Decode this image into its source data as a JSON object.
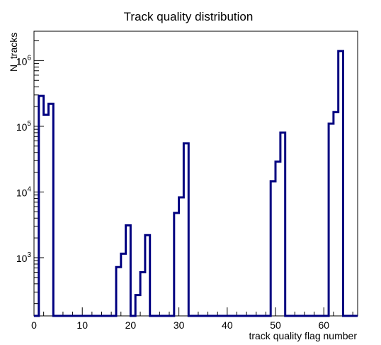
{
  "chart_data": {
    "type": "histogram",
    "title": "Track quality distribution",
    "xlabel": "track quality flag number",
    "ylabel": "N_tracks",
    "log_y": true,
    "xlim": [
      0,
      67
    ],
    "ylim": [
      130,
      2800000
    ],
    "x_ticks": [
      {
        "value": 0,
        "label": "0"
      },
      {
        "value": 10,
        "label": "10"
      },
      {
        "value": 20,
        "label": "20"
      },
      {
        "value": 30,
        "label": "30"
      },
      {
        "value": 40,
        "label": "40"
      },
      {
        "value": 50,
        "label": "50"
      },
      {
        "value": 60,
        "label": "60"
      }
    ],
    "y_ticks": [
      {
        "value": 1000,
        "base": "10",
        "exp": "3"
      },
      {
        "value": 10000,
        "base": "10",
        "exp": "4"
      },
      {
        "value": 100000,
        "base": "10",
        "exp": "5"
      },
      {
        "value": 1000000,
        "base": "10",
        "exp": "6"
      }
    ],
    "bin_width": 1,
    "bins": [
      {
        "x": 0,
        "y": 0
      },
      {
        "x": 1,
        "y": 290000
      },
      {
        "x": 2,
        "y": 150000
      },
      {
        "x": 3,
        "y": 220000
      },
      {
        "x": 17,
        "y": 720
      },
      {
        "x": 18,
        "y": 1150
      },
      {
        "x": 19,
        "y": 3100
      },
      {
        "x": 21,
        "y": 270
      },
      {
        "x": 22,
        "y": 600
      },
      {
        "x": 23,
        "y": 2200
      },
      {
        "x": 29,
        "y": 4800
      },
      {
        "x": 30,
        "y": 8300
      },
      {
        "x": 31,
        "y": 55000
      },
      {
        "x": 49,
        "y": 14500
      },
      {
        "x": 50,
        "y": 29000
      },
      {
        "x": 51,
        "y": 80000
      },
      {
        "x": 61,
        "y": 110000
      },
      {
        "x": 62,
        "y": 165000
      },
      {
        "x": 63,
        "y": 1400000
      }
    ],
    "line_color": "#000080",
    "grid": false,
    "legend": "none"
  }
}
